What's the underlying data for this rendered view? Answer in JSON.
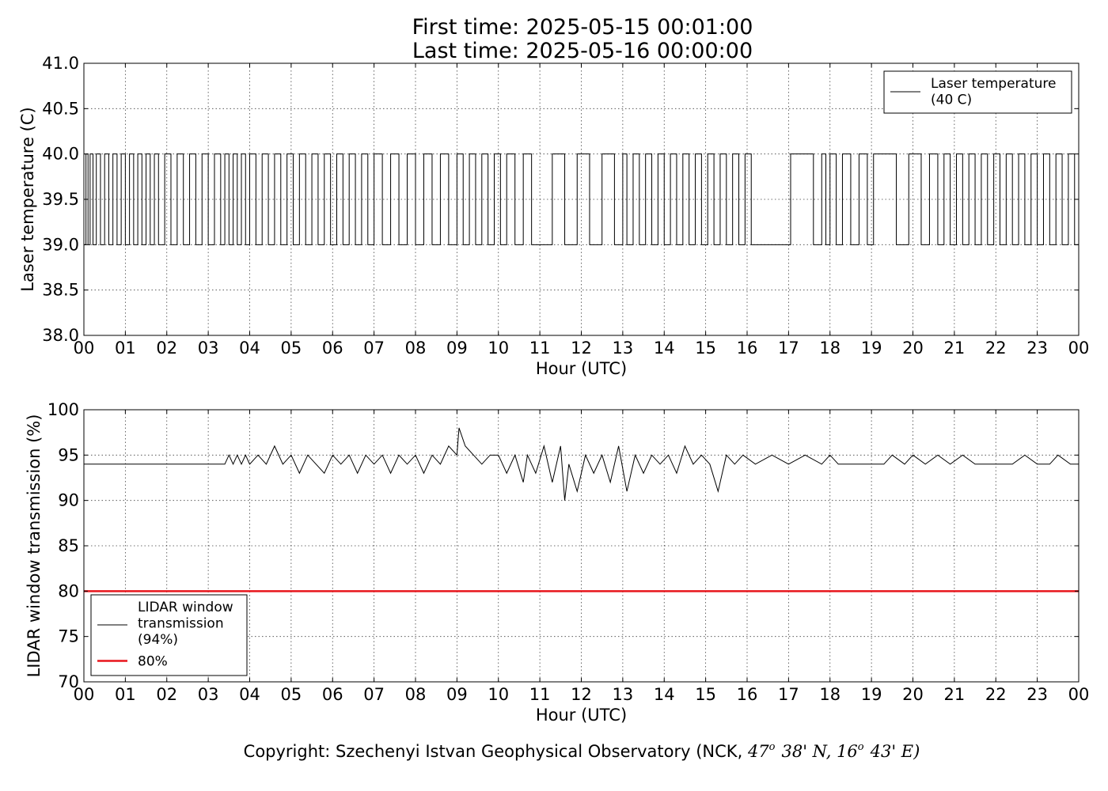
{
  "title_lines": [
    "First time: 2025-05-15 00:01:00",
    "Last time: 2025-05-16 00:00:00"
  ],
  "copyright": {
    "prefix": "Copyright: Szechenyi Istvan Geophysical Observatory (NCK, ",
    "lat_deg": "47",
    "lat_rest": "38' N, ",
    "lon_deg": "16",
    "lon_rest": "43' E)",
    "degree_sym": "o"
  },
  "chart_data": [
    {
      "type": "line",
      "xlabel": "Hour (UTC)",
      "ylabel": "Laser temperature (C)",
      "xlim": [
        0,
        24
      ],
      "ylim": [
        38.0,
        41.0
      ],
      "xticks": [
        0,
        1,
        2,
        3,
        4,
        5,
        6,
        7,
        8,
        9,
        10,
        11,
        12,
        13,
        14,
        15,
        16,
        17,
        18,
        19,
        20,
        21,
        22,
        23,
        24
      ],
      "xtick_labels": [
        "00",
        "01",
        "02",
        "03",
        "04",
        "05",
        "06",
        "07",
        "08",
        "09",
        "10",
        "11",
        "12",
        "13",
        "14",
        "15",
        "16",
        "17",
        "18",
        "19",
        "20",
        "21",
        "22",
        "23",
        "00"
      ],
      "yticks": [
        38.0,
        38.5,
        39.0,
        39.5,
        40.0,
        40.5,
        41.0
      ],
      "ytick_labels": [
        "38.0",
        "38.5",
        "39.0",
        "39.5",
        "40.0",
        "40.5",
        "41.0"
      ],
      "grid": true,
      "legend_position": "top-right",
      "series": [
        {
          "name": "Laser temperature\n(40 C)",
          "color": "#000000",
          "note": "switches between 39.0 and 40.0 throughout the day",
          "x": [
            0.0,
            0.05,
            0.1,
            0.15,
            0.22,
            0.3,
            0.4,
            0.5,
            0.6,
            0.7,
            0.8,
            0.9,
            1.0,
            1.1,
            1.2,
            1.3,
            1.4,
            1.5,
            1.6,
            1.7,
            1.8,
            1.95,
            2.1,
            2.25,
            2.4,
            2.55,
            2.7,
            2.85,
            3.0,
            3.15,
            3.3,
            3.4,
            3.5,
            3.6,
            3.7,
            3.8,
            3.9,
            4.0,
            4.15,
            4.3,
            4.45,
            4.6,
            4.75,
            4.9,
            5.05,
            5.2,
            5.35,
            5.5,
            5.65,
            5.8,
            5.95,
            6.1,
            6.25,
            6.4,
            6.55,
            6.7,
            6.85,
            7.0,
            7.2,
            7.4,
            7.6,
            7.8,
            8.0,
            8.2,
            8.4,
            8.6,
            8.8,
            9.0,
            9.15,
            9.3,
            9.45,
            9.6,
            9.75,
            9.9,
            10.05,
            10.2,
            10.4,
            10.6,
            10.8,
            11.0,
            11.3,
            11.6,
            11.9,
            12.2,
            12.5,
            12.8,
            13.0,
            13.1,
            13.25,
            13.4,
            13.55,
            13.7,
            13.85,
            14.0,
            14.15,
            14.3,
            14.45,
            14.6,
            14.75,
            14.9,
            15.05,
            15.2,
            15.35,
            15.5,
            15.65,
            15.8,
            15.95,
            16.1,
            16.3,
            16.6,
            17.0,
            17.05,
            17.15,
            17.3,
            17.6,
            17.8,
            17.9,
            18.0,
            18.15,
            18.3,
            18.5,
            18.7,
            18.9,
            19.05,
            19.1,
            19.3,
            19.6,
            19.85,
            19.9,
            20.0,
            20.2,
            20.4,
            20.6,
            20.75,
            20.9,
            21.05,
            21.2,
            21.35,
            21.5,
            21.65,
            21.8,
            21.95,
            22.1,
            22.25,
            22.4,
            22.55,
            22.7,
            22.85,
            23.0,
            23.15,
            23.3,
            23.45,
            23.6,
            23.75,
            23.9,
            24.0
          ],
          "y": [
            39,
            40,
            39,
            40,
            39,
            40,
            39,
            40,
            39,
            40,
            39,
            40,
            39,
            40,
            39,
            40,
            39,
            40,
            39,
            40,
            39,
            40,
            39,
            40,
            39,
            40,
            39,
            40,
            39,
            40,
            39,
            40,
            39,
            40,
            39,
            40,
            39,
            40,
            39,
            40,
            39,
            40,
            39,
            40,
            39,
            40,
            39,
            40,
            39,
            40,
            39,
            40,
            39,
            40,
            39,
            40,
            39,
            40,
            39,
            40,
            39,
            40,
            39,
            40,
            39,
            40,
            39,
            40,
            39,
            40,
            39,
            40,
            39,
            40,
            39,
            40,
            39,
            40,
            39,
            39,
            40,
            39,
            40,
            39,
            40,
            39,
            40,
            39,
            40,
            39,
            40,
            39,
            40,
            39,
            40,
            39,
            40,
            39,
            40,
            39,
            40,
            39,
            40,
            39,
            40,
            39,
            40,
            39,
            39,
            39,
            39,
            40,
            40,
            40,
            39,
            40,
            39,
            40,
            39,
            40,
            39,
            40,
            39,
            40,
            40,
            40,
            39,
            39,
            40,
            40,
            39,
            40,
            39,
            40,
            39,
            40,
            39,
            40,
            39,
            40,
            39,
            40,
            39,
            40,
            39,
            40,
            39,
            40,
            39,
            40,
            39,
            40,
            39,
            40,
            39,
            39
          ]
        }
      ]
    },
    {
      "type": "line",
      "xlabel": "Hour (UTC)",
      "ylabel": "LIDAR window transmission (%)",
      "xlim": [
        0,
        24
      ],
      "ylim": [
        70,
        100
      ],
      "xticks": [
        0,
        1,
        2,
        3,
        4,
        5,
        6,
        7,
        8,
        9,
        10,
        11,
        12,
        13,
        14,
        15,
        16,
        17,
        18,
        19,
        20,
        21,
        22,
        23,
        24
      ],
      "xtick_labels": [
        "00",
        "01",
        "02",
        "03",
        "04",
        "05",
        "06",
        "07",
        "08",
        "09",
        "10",
        "11",
        "12",
        "13",
        "14",
        "15",
        "16",
        "17",
        "18",
        "19",
        "20",
        "21",
        "22",
        "23",
        "00"
      ],
      "yticks": [
        70,
        75,
        80,
        85,
        90,
        95,
        100
      ],
      "ytick_labels": [
        "70",
        "75",
        "80",
        "85",
        "90",
        "95",
        "100"
      ],
      "grid": true,
      "legend_position": "lower-left",
      "series": [
        {
          "name": "LIDAR window\ntransmission\n(94%)",
          "color": "#000000",
          "x": [
            0.0,
            3.4,
            3.5,
            3.6,
            3.7,
            3.8,
            3.9,
            4.0,
            4.2,
            4.4,
            4.6,
            4.8,
            5.0,
            5.2,
            5.4,
            5.6,
            5.8,
            6.0,
            6.2,
            6.4,
            6.6,
            6.8,
            7.0,
            7.2,
            7.4,
            7.6,
            7.8,
            8.0,
            8.2,
            8.4,
            8.6,
            8.8,
            9.0,
            9.05,
            9.2,
            9.4,
            9.6,
            9.8,
            10.0,
            10.2,
            10.4,
            10.6,
            10.7,
            10.9,
            11.1,
            11.3,
            11.5,
            11.6,
            11.7,
            11.9,
            12.1,
            12.3,
            12.5,
            12.7,
            12.9,
            13.1,
            13.3,
            13.5,
            13.7,
            13.9,
            14.1,
            14.3,
            14.5,
            14.7,
            14.9,
            15.1,
            15.3,
            15.5,
            15.7,
            15.9,
            16.2,
            16.6,
            17.0,
            17.4,
            17.8,
            18.0,
            18.2,
            18.5,
            19.0,
            19.3,
            19.5,
            19.8,
            20.0,
            20.3,
            20.6,
            20.9,
            21.2,
            21.5,
            21.8,
            22.1,
            22.4,
            22.7,
            23.0,
            23.3,
            23.5,
            23.8,
            24.0
          ],
          "y": [
            94,
            94,
            95,
            94,
            95,
            94,
            95,
            94,
            95,
            94,
            96,
            94,
            95,
            93,
            95,
            94,
            93,
            95,
            94,
            95,
            93,
            95,
            94,
            95,
            93,
            95,
            94,
            95,
            93,
            95,
            94,
            96,
            95,
            98,
            96,
            95,
            94,
            95,
            95,
            93,
            95,
            92,
            95,
            93,
            96,
            92,
            96,
            90,
            94,
            91,
            95,
            93,
            95,
            92,
            96,
            91,
            95,
            93,
            95,
            94,
            95,
            93,
            96,
            94,
            95,
            94,
            91,
            95,
            94,
            95,
            94,
            95,
            94,
            95,
            94,
            95,
            94,
            94,
            94,
            94,
            95,
            94,
            95,
            94,
            95,
            94,
            95,
            94,
            94,
            94,
            94,
            95,
            94,
            94,
            95,
            94,
            94
          ]
        },
        {
          "name": "80%",
          "color": "#e8151b",
          "x": [
            0,
            24
          ],
          "y": [
            80,
            80
          ]
        }
      ]
    }
  ]
}
